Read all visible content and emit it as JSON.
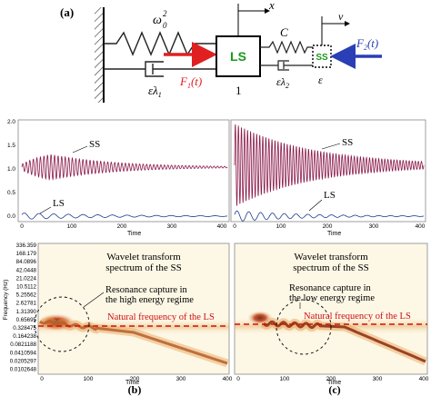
{
  "colors": {
    "spring": "#222222",
    "force_red": "#e02020",
    "force_blue": "#2a3fb5",
    "label_green": "#1a9a1a",
    "signal": "#8b1a4a",
    "dashed_red": "#d01010",
    "heat_core": "#5a1200",
    "heat_bg": "#f6e6b8"
  },
  "schematic": {
    "panel_label": "(a)",
    "omega_label": "ω",
    "omega_sup": "2",
    "omega_sub": "0",
    "x_label": "x",
    "c_label": "C",
    "v_label": "v",
    "ls_box": "LS",
    "ss_box": "SS",
    "f1_main": "F",
    "f1_sub": "1",
    "f1_arg": "(t)",
    "f2_main": "F",
    "f2_sub": "2",
    "f2_arg": "(t)",
    "mass_ls": "1",
    "mass_ss": "ε",
    "damper1_main": "ελ",
    "damper1_sub": "1",
    "damper2_main": "ελ",
    "damper2_sub": "2"
  },
  "time_series": {
    "ss_label": "SS",
    "ls_label": "LS",
    "xlabel": "Time",
    "y_ticks": [
      "2.0",
      "1.5",
      "1.0",
      "0.5",
      "0.0"
    ],
    "x_ticks": [
      "0",
      "100",
      "200",
      "300",
      "400"
    ]
  },
  "wavelet": {
    "ylabel": "Frequency (Hz)",
    "xlabel": "Time",
    "y_ticks": [
      "336.359",
      "168.179",
      "84.0896",
      "42.0448",
      "21.0224",
      "10.5112",
      "5.25562",
      "2.62781",
      "1.31390",
      "0.65695",
      "0.328475",
      "0.164238",
      "0.0821188",
      "0.0410594",
      "0.0205297",
      "0.0102648"
    ],
    "x_ticks": [
      "0",
      "100",
      "200",
      "300",
      "400"
    ],
    "title_line1": "Wavelet transform",
    "title_line2": "spectrum of the SS",
    "natural_freq_label": "Natural frequency of the LS",
    "left_capture_line1": "Resonance capture in",
    "left_capture_line2": "the high energy regime",
    "right_capture_line1": "Resonance capture in",
    "right_capture_line2": "the low energy regime"
  },
  "panel_labels": {
    "b": "(b)",
    "c": "(c)"
  }
}
